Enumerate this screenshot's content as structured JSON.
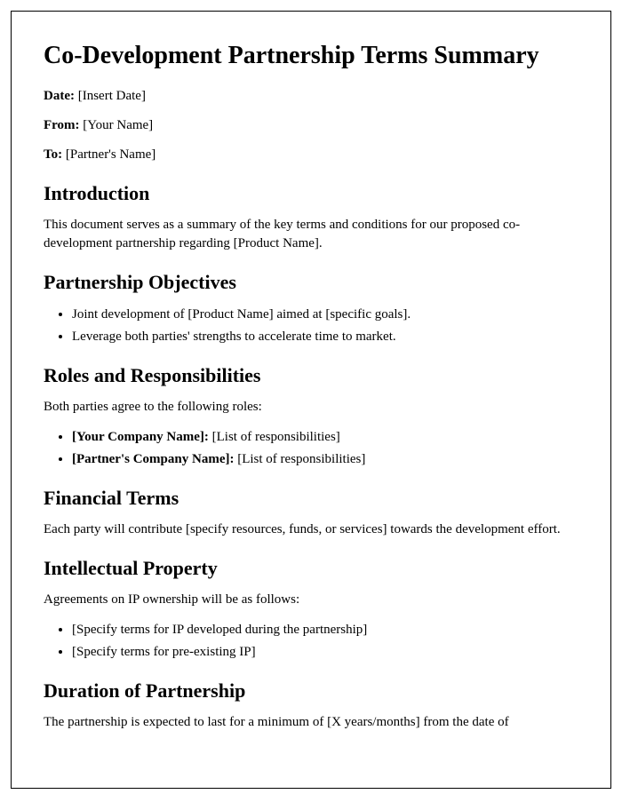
{
  "title": "Co-Development Partnership Terms Summary",
  "meta": {
    "date_label": "Date:",
    "date_value": " [Insert Date]",
    "from_label": "From:",
    "from_value": " [Your Name]",
    "to_label": "To:",
    "to_value": " [Partner's Name]"
  },
  "sections": {
    "introduction": {
      "heading": "Introduction",
      "body": "This document serves as a summary of the key terms and conditions for our proposed co-development partnership regarding [Product Name]."
    },
    "objectives": {
      "heading": "Partnership Objectives",
      "items": [
        "Joint development of [Product Name] aimed at [specific goals].",
        "Leverage both parties' strengths to accelerate time to market."
      ]
    },
    "roles": {
      "heading": "Roles and Responsibilities",
      "intro": "Both parties agree to the following roles:",
      "items": [
        {
          "label": "[Your Company Name]:",
          "value": " [List of responsibilities]"
        },
        {
          "label": "[Partner's Company Name]:",
          "value": " [List of responsibilities]"
        }
      ]
    },
    "financial": {
      "heading": "Financial Terms",
      "body": "Each party will contribute [specify resources, funds, or services] towards the development effort."
    },
    "ip": {
      "heading": "Intellectual Property",
      "intro": "Agreements on IP ownership will be as follows:",
      "items": [
        "[Specify terms for IP developed during the partnership]",
        "[Specify terms for pre-existing IP]"
      ]
    },
    "duration": {
      "heading": "Duration of Partnership",
      "body": "The partnership is expected to last for a minimum of [X years/months] from the date of"
    }
  }
}
